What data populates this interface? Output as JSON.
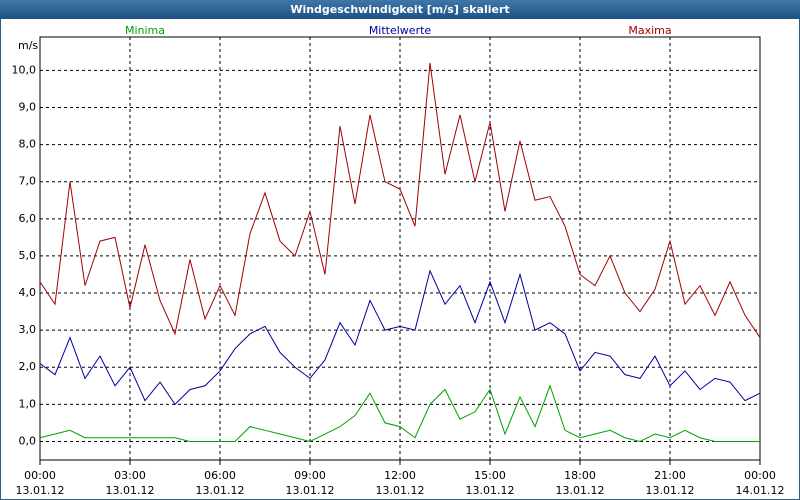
{
  "chart_data": {
    "type": "line",
    "title": "Windgeschwindigkeit [m/s] skaliert",
    "y_unit": "m/s",
    "x": [
      0,
      0.5,
      1,
      1.5,
      2,
      2.5,
      3,
      3.5,
      4,
      4.5,
      5,
      5.5,
      6,
      6.5,
      7,
      7.5,
      8,
      8.5,
      9,
      9.5,
      10,
      10.5,
      11,
      11.5,
      12,
      12.5,
      13,
      13.5,
      14,
      14.5,
      15,
      15.5,
      16,
      16.5,
      17,
      17.5,
      18,
      18.5,
      19,
      19.5,
      20,
      20.5,
      21,
      21.5,
      22,
      22.5,
      23,
      23.5,
      24
    ],
    "series": [
      {
        "name": "Minima",
        "color": "#00a000",
        "values": [
          0.1,
          0.2,
          0.3,
          0.1,
          0.1,
          0.1,
          0.1,
          0.1,
          0.1,
          0.1,
          0.0,
          0.0,
          0.0,
          0.0,
          0.4,
          0.3,
          0.2,
          0.1,
          0.0,
          0.2,
          0.4,
          0.7,
          1.3,
          0.5,
          0.4,
          0.1,
          1.0,
          1.4,
          0.6,
          0.8,
          1.4,
          0.2,
          1.2,
          0.4,
          1.5,
          0.3,
          0.1,
          0.2,
          0.3,
          0.1,
          0.0,
          0.2,
          0.1,
          0.3,
          0.1,
          0.0,
          0.0,
          0.0,
          0.0
        ]
      },
      {
        "name": "Mittelwerte",
        "color": "#0000a0",
        "values": [
          2.1,
          1.8,
          2.8,
          1.7,
          2.3,
          1.5,
          2.0,
          1.1,
          1.6,
          1.0,
          1.4,
          1.5,
          1.9,
          2.5,
          2.9,
          3.1,
          2.4,
          2.0,
          1.7,
          2.2,
          3.2,
          2.6,
          3.8,
          3.0,
          3.1,
          3.0,
          4.6,
          3.7,
          4.2,
          3.2,
          4.3,
          3.2,
          4.5,
          3.0,
          3.2,
          2.9,
          1.9,
          2.4,
          2.3,
          1.8,
          1.7,
          2.3,
          1.5,
          1.9,
          1.4,
          1.7,
          1.6,
          1.1,
          1.3
        ]
      },
      {
        "name": "Maxima",
        "color": "#a00000",
        "values": [
          4.3,
          3.7,
          7.0,
          4.2,
          5.4,
          5.5,
          3.6,
          5.3,
          3.8,
          2.9,
          4.9,
          3.3,
          4.2,
          3.4,
          5.6,
          6.7,
          5.4,
          5.0,
          6.2,
          4.5,
          8.5,
          6.4,
          8.8,
          7.0,
          6.8,
          5.8,
          10.2,
          7.2,
          8.8,
          7.0,
          8.6,
          6.2,
          8.1,
          6.5,
          6.6,
          5.8,
          4.5,
          4.2,
          5.0,
          4.0,
          3.5,
          4.1,
          5.4,
          3.7,
          4.2,
          3.4,
          4.3,
          3.4,
          2.8
        ]
      }
    ],
    "xlim": [
      0,
      24
    ],
    "xticks": [
      {
        "value": 0,
        "label": "00:00",
        "date": "13.01.12"
      },
      {
        "value": 3,
        "label": "03:00",
        "date": "13.01.12"
      },
      {
        "value": 6,
        "label": "06:00",
        "date": "13.01.12"
      },
      {
        "value": 9,
        "label": "09:00",
        "date": "13.01.12"
      },
      {
        "value": 12,
        "label": "12:00",
        "date": "13.01.12"
      },
      {
        "value": 15,
        "label": "15:00",
        "date": "13.01.12"
      },
      {
        "value": 18,
        "label": "18:00",
        "date": "13.01.12"
      },
      {
        "value": 21,
        "label": "21:00",
        "date": "13.01.12"
      },
      {
        "value": 24,
        "label": "00:00",
        "date": "14.01.12"
      }
    ],
    "ylim": [
      -0.5,
      10.9
    ],
    "yticks": [
      {
        "value": 0,
        "label": "0,0"
      },
      {
        "value": 1,
        "label": "1,0"
      },
      {
        "value": 2,
        "label": "2,0"
      },
      {
        "value": 3,
        "label": "3,0"
      },
      {
        "value": 4,
        "label": "4,0"
      },
      {
        "value": 5,
        "label": "5,0"
      },
      {
        "value": 6,
        "label": "6,0"
      },
      {
        "value": 7,
        "label": "7,0"
      },
      {
        "value": 8,
        "label": "8,0"
      },
      {
        "value": 9,
        "label": "9,0"
      },
      {
        "value": 10,
        "label": "10,0"
      }
    ],
    "grid": true
  }
}
